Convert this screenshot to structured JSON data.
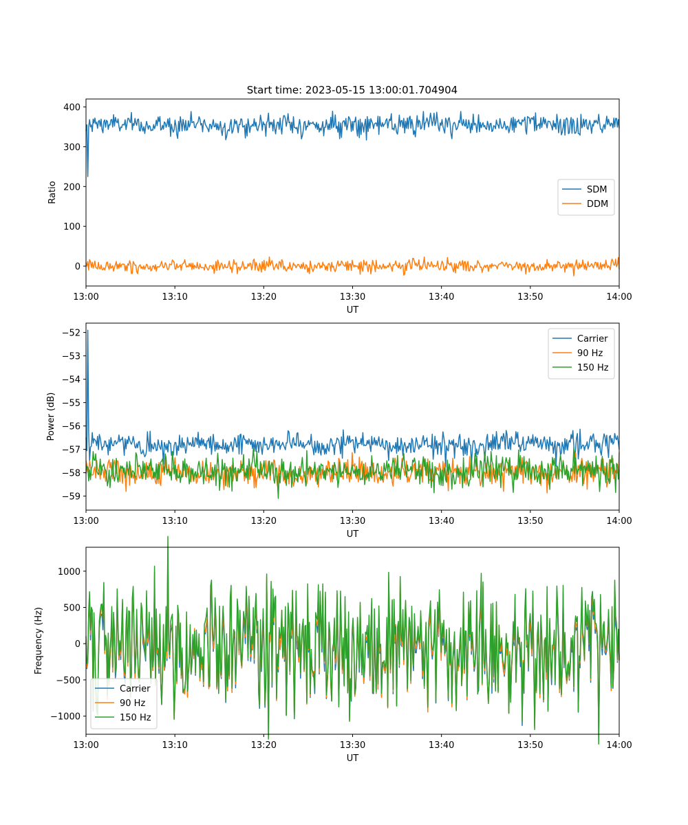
{
  "figure": {
    "title": "Start time: 2023-05-15 13:00:01.704904"
  },
  "chart_data": [
    {
      "type": "line",
      "x_label": "UT",
      "y_label": "Ratio",
      "x_range": [
        "13:00",
        "14:00"
      ],
      "x_ticks": [
        "13:00",
        "13:10",
        "13:20",
        "13:30",
        "13:40",
        "13:50",
        "14:00"
      ],
      "ylim": [
        -50,
        420
      ],
      "y_ticks": [
        0,
        100,
        200,
        300,
        400
      ],
      "legend_position": "center-right",
      "series": [
        {
          "name": "SDM",
          "color": "#1f77b4",
          "mean": 355,
          "noise": 13,
          "spikes": [
            {
              "t": 0.3,
              "v": 225
            },
            {
              "t": 0.05,
              "v": 340
            }
          ]
        },
        {
          "name": "DDM",
          "color": "#ff7f0e",
          "mean": 0,
          "noise": 8,
          "spikes": []
        }
      ]
    },
    {
      "type": "line",
      "x_label": "UT",
      "y_label": "Power (dB)",
      "x_range": [
        "13:00",
        "14:00"
      ],
      "x_ticks": [
        "13:00",
        "13:10",
        "13:20",
        "13:30",
        "13:40",
        "13:50",
        "14:00"
      ],
      "ylim": [
        -59.6,
        -51.6
      ],
      "y_ticks": [
        -52,
        -53,
        -54,
        -55,
        -56,
        -57,
        -58,
        -59
      ],
      "legend_position": "upper-right",
      "series": [
        {
          "name": "Carrier",
          "color": "#1f77b4",
          "mean": -56.8,
          "noise": 0.25,
          "spikes": [
            {
              "t": 0.25,
              "v": -51.9
            },
            {
              "t": 0.15,
              "v": -56.3
            },
            {
              "t": 0.45,
              "v": -57.5
            }
          ]
        },
        {
          "name": "90 Hz",
          "color": "#ff7f0e",
          "mean": -58.0,
          "noise": 0.3,
          "spikes": []
        },
        {
          "name": "150 Hz",
          "color": "#2ca02c",
          "mean": -57.9,
          "noise": 0.35,
          "spikes": []
        }
      ]
    },
    {
      "type": "line",
      "x_label": "UT",
      "y_label": "Frequency (Hz)",
      "x_range": [
        "13:00",
        "14:00"
      ],
      "x_ticks": [
        "13:00",
        "13:10",
        "13:20",
        "13:30",
        "13:40",
        "13:50",
        "14:00"
      ],
      "ylim": [
        -1250,
        1330
      ],
      "y_ticks": [
        -1000,
        -500,
        0,
        500,
        1000
      ],
      "legend_position": "lower-left",
      "series": [
        {
          "name": "Carrier",
          "color": "#1f77b4",
          "mean": 0,
          "noise": 450,
          "scale": 0.9,
          "offset": -60,
          "spikes": []
        },
        {
          "name": "90 Hz",
          "color": "#ff7f0e",
          "mean": 0,
          "noise": 450,
          "scale": 0.95,
          "offset": -20,
          "spikes": []
        },
        {
          "name": "150 Hz",
          "color": "#2ca02c",
          "mean": 0,
          "noise": 450,
          "scale": 1.0,
          "offset": 30,
          "spikes": []
        }
      ]
    }
  ]
}
